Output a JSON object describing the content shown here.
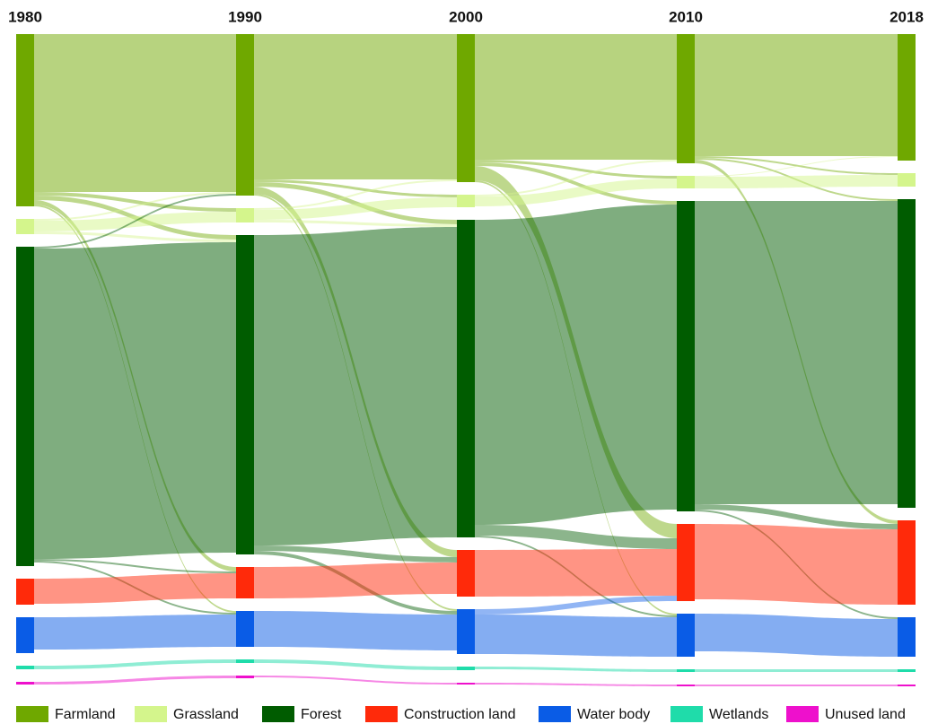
{
  "chart_data": {
    "type": "sankey",
    "columns": [
      "1980",
      "1990",
      "2000",
      "2010",
      "2018"
    ],
    "series": [
      {
        "name": "Farmland",
        "color": "#6fa800",
        "values": [
          192,
          180,
          165,
          144,
          141
        ]
      },
      {
        "name": "Grassland",
        "color": "#d4f58c",
        "values": [
          17,
          16,
          14,
          14,
          15
        ]
      },
      {
        "name": "Forest",
        "color": "#005c00",
        "values": [
          356,
          356,
          354,
          346,
          344
        ]
      },
      {
        "name": "Construction land",
        "color": "#ff2a0a",
        "values": [
          29,
          35,
          52,
          86,
          94
        ]
      },
      {
        "name": "Water body",
        "color": "#0a5ce6",
        "values": [
          40,
          40,
          50,
          48,
          44
        ]
      },
      {
        "name": "Wetlands",
        "color": "#1fdcaa",
        "values": [
          4,
          4,
          4,
          3,
          3
        ]
      },
      {
        "name": "Unused land",
        "color": "#ee10cc",
        "values": [
          3,
          3,
          2,
          2,
          2
        ]
      }
    ],
    "flows": [
      [
        [
          0,
          0,
          176
        ],
        [
          0,
          1,
          4
        ],
        [
          0,
          2,
          5
        ],
        [
          0,
          3,
          5
        ],
        [
          0,
          4,
          2
        ],
        [
          1,
          1,
          12
        ],
        [
          1,
          0,
          2
        ],
        [
          1,
          2,
          3
        ],
        [
          2,
          2,
          346
        ],
        [
          2,
          0,
          2
        ],
        [
          2,
          3,
          2
        ],
        [
          2,
          4,
          2
        ],
        [
          3,
          3,
          28
        ],
        [
          4,
          4,
          36
        ],
        [
          4,
          3,
          0
        ],
        [
          5,
          5,
          4
        ],
        [
          6,
          6,
          3
        ]
      ],
      [
        [
          0,
          0,
          162
        ],
        [
          0,
          1,
          3
        ],
        [
          0,
          2,
          5
        ],
        [
          0,
          3,
          8
        ],
        [
          0,
          4,
          2
        ],
        [
          1,
          1,
          11
        ],
        [
          1,
          0,
          2
        ],
        [
          1,
          2,
          3
        ],
        [
          2,
          2,
          346
        ],
        [
          2,
          3,
          6
        ],
        [
          2,
          4,
          4
        ],
        [
          3,
          3,
          35
        ],
        [
          4,
          4,
          40
        ],
        [
          5,
          5,
          4
        ],
        [
          6,
          6,
          2
        ]
      ],
      [
        [
          0,
          0,
          140
        ],
        [
          0,
          1,
          3
        ],
        [
          0,
          2,
          4
        ],
        [
          0,
          3,
          16
        ],
        [
          0,
          4,
          2
        ],
        [
          1,
          1,
          11
        ],
        [
          1,
          0,
          2
        ],
        [
          2,
          2,
          340
        ],
        [
          2,
          3,
          12
        ],
        [
          2,
          4,
          2
        ],
        [
          3,
          3,
          52
        ],
        [
          4,
          4,
          44
        ],
        [
          4,
          3,
          6
        ],
        [
          5,
          5,
          3
        ],
        [
          6,
          6,
          2
        ]
      ],
      [
        [
          0,
          0,
          136
        ],
        [
          0,
          1,
          2
        ],
        [
          0,
          2,
          2
        ],
        [
          0,
          3,
          4
        ],
        [
          1,
          1,
          13
        ],
        [
          1,
          0,
          1
        ],
        [
          2,
          2,
          338
        ],
        [
          2,
          3,
          6
        ],
        [
          2,
          4,
          2
        ],
        [
          3,
          3,
          84
        ],
        [
          4,
          4,
          42
        ],
        [
          4,
          3,
          0
        ],
        [
          5,
          5,
          3
        ],
        [
          6,
          6,
          2
        ]
      ]
    ]
  }
}
